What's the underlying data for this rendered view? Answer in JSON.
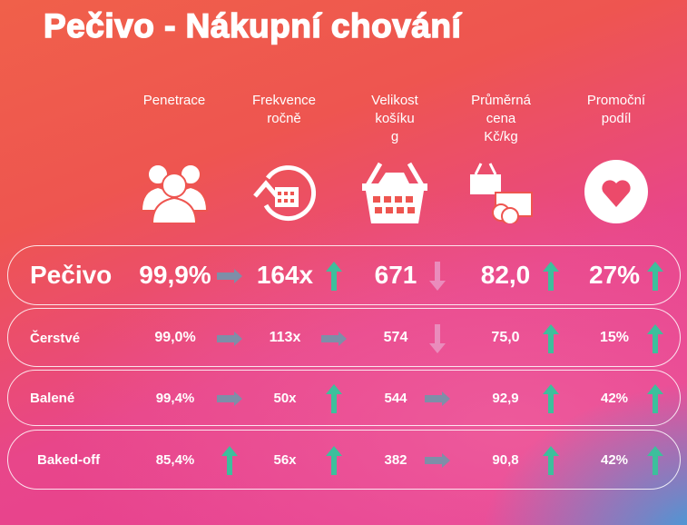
{
  "title": "Pečivo - Nákupní chování",
  "headers": [
    {
      "lines": [
        "Penetrace"
      ],
      "icon": "people-icon"
    },
    {
      "lines": [
        "Frekvence",
        "ročně"
      ],
      "icon": "repeat-basket-icon"
    },
    {
      "lines": [
        "Velikost",
        "košíku",
        "g"
      ],
      "icon": "basket-icon"
    },
    {
      "lines": [
        "Průměrná",
        "cena",
        "Kč/kg"
      ],
      "icon": "basket-money-icon"
    },
    {
      "lines": [
        "Promoční",
        "podíl"
      ],
      "icon": "heart-icon"
    }
  ],
  "rows": [
    {
      "label": "Pečivo",
      "values": [
        "99,9%",
        "164x",
        "671",
        "82,0",
        "27%"
      ],
      "trends": [
        "flat",
        "up",
        "down",
        "up",
        "up"
      ]
    },
    {
      "label": "Čerstvé",
      "values": [
        "99,0%",
        "113x",
        "574",
        "75,0",
        "15%"
      ],
      "trends": [
        "flat",
        "flat",
        "down",
        "up",
        "up"
      ]
    },
    {
      "label": "Balené",
      "values": [
        "99,4%",
        "50x",
        "544",
        "92,9",
        "42%"
      ],
      "trends": [
        "flat",
        "up",
        "flat",
        "up",
        "up"
      ]
    },
    {
      "label": "Baked-off",
      "values": [
        "85,4%",
        "56x",
        "382",
        "90,8",
        "42%"
      ],
      "trends": [
        "up",
        "up",
        "flat",
        "up",
        "up"
      ]
    }
  ],
  "colors": {
    "up": "#3dbf9c",
    "down": "#ea8cbc",
    "flat": "#7e8ea8"
  }
}
